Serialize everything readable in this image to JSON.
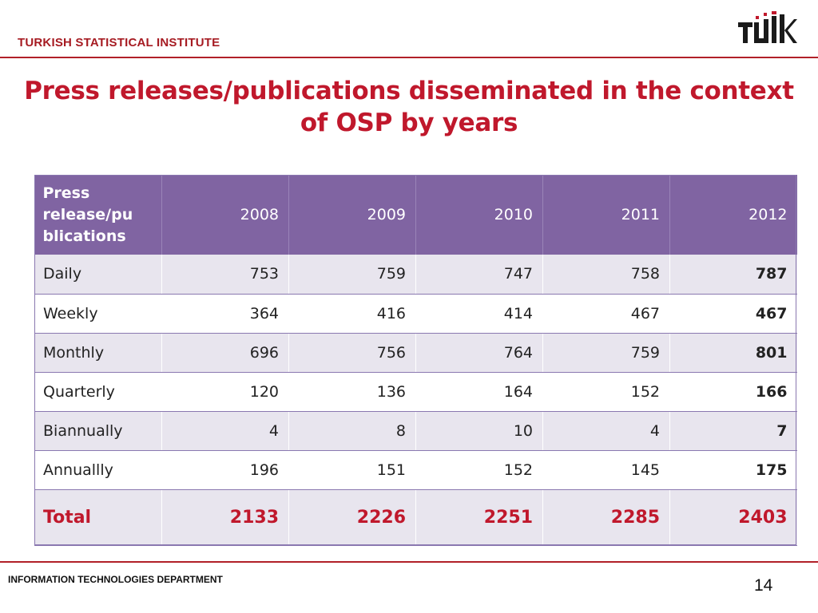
{
  "header": {
    "org_name": "TURKISH STATISTICAL INSTITUTE",
    "logo_text": "TÜİK",
    "accent_color": "#b12028"
  },
  "title": {
    "line1": "Press releases/publications disseminated in the context",
    "line2": "of OSP by years"
  },
  "table": {
    "header_label": "Press release/pu blications",
    "header_color": "#8064a2",
    "years": [
      "2008",
      "2009",
      "2010",
      "2011",
      "2012"
    ],
    "rows": [
      {
        "label": "Daily",
        "values": [
          "753",
          "759",
          "747",
          "758",
          "787"
        ]
      },
      {
        "label": "Weekly",
        "values": [
          "364",
          "416",
          "414",
          "467",
          "467"
        ]
      },
      {
        "label": "Monthly",
        "values": [
          "696",
          "756",
          "764",
          "759",
          "801"
        ]
      },
      {
        "label": "Quarterly",
        "values": [
          "120",
          "136",
          "164",
          "152",
          "166"
        ]
      },
      {
        "label": "Biannually",
        "values": [
          "4",
          "8",
          "10",
          "4",
          "7"
        ]
      },
      {
        "label": "Annuallly",
        "values": [
          "196",
          "151",
          "152",
          "145",
          "175"
        ]
      }
    ],
    "total": {
      "label": "Total",
      "values": [
        "2133",
        "2226",
        "2251",
        "2285",
        "2403"
      ]
    }
  },
  "footer": {
    "department": "INFORMATION TECHNOLOGIES DEPARTMENT",
    "page_number": "14"
  }
}
